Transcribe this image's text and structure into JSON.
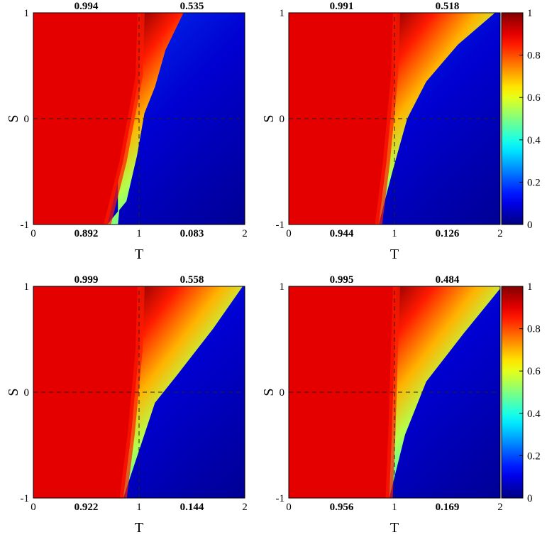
{
  "chart_data": [
    {
      "type": "heatmap",
      "title": "",
      "xlabel": "T",
      "ylabel": "S",
      "xlim": [
        0,
        2
      ],
      "ylim": [
        -1,
        1
      ],
      "x_ticks": [
        "0",
        "1",
        "2"
      ],
      "y_ticks": [
        "-1",
        "0",
        "1"
      ],
      "quadrant_values": {
        "top_left": "0.994",
        "top_right": "0.535",
        "bottom_left": "0.892",
        "bottom_right": "0.083"
      },
      "boundary": [
        [
          1.42,
          1.0
        ],
        [
          1.25,
          0.65
        ],
        [
          1.15,
          0.3
        ],
        [
          1.05,
          0.05
        ],
        [
          0.98,
          -0.35
        ],
        [
          0.88,
          -0.78
        ],
        [
          0.7,
          -1.0
        ]
      ],
      "top_edge_values": [
        [
          1.0,
          0.8
        ],
        [
          1.3,
          0.62
        ],
        [
          1.6,
          0.5
        ],
        [
          2.0,
          0.42
        ]
      ],
      "colorbar": false
    },
    {
      "type": "heatmap",
      "title": "",
      "xlabel": "T",
      "ylabel": "S",
      "xlim": [
        0,
        2
      ],
      "ylim": [
        -1,
        1
      ],
      "x_ticks": [
        "0",
        "1",
        "2"
      ],
      "y_ticks": [
        "-1",
        "0",
        "1"
      ],
      "quadrant_values": {
        "top_left": "0.991",
        "top_right": "0.518",
        "bottom_left": "0.944",
        "bottom_right": "0.126"
      },
      "boundary": [
        [
          1.95,
          1.0
        ],
        [
          1.6,
          0.7
        ],
        [
          1.3,
          0.35
        ],
        [
          1.12,
          0.0
        ],
        [
          0.98,
          -0.5
        ],
        [
          0.85,
          -1.0
        ]
      ],
      "top_edge_values": [
        [
          1.0,
          0.82
        ],
        [
          1.3,
          0.72
        ],
        [
          1.7,
          0.62
        ],
        [
          2.0,
          0.55
        ]
      ],
      "colorbar": true
    },
    {
      "type": "heatmap",
      "title": "",
      "xlabel": "T",
      "ylabel": "S",
      "xlim": [
        0,
        2
      ],
      "ylim": [
        -1,
        1
      ],
      "x_ticks": [
        "0",
        "1",
        "2"
      ],
      "y_ticks": [
        "-1",
        "0",
        "1"
      ],
      "quadrant_values": {
        "top_left": "0.999",
        "top_right": "0.558",
        "bottom_left": "0.922",
        "bottom_right": "0.144"
      },
      "boundary": [
        [
          1.98,
          1.0
        ],
        [
          1.7,
          0.6
        ],
        [
          1.35,
          0.15
        ],
        [
          1.15,
          -0.1
        ],
        [
          1.0,
          -0.55
        ],
        [
          0.85,
          -1.0
        ]
      ],
      "top_edge_values": [
        [
          1.0,
          0.85
        ],
        [
          1.25,
          0.62
        ],
        [
          1.6,
          0.45
        ],
        [
          2.0,
          0.35
        ]
      ],
      "colorbar": false
    },
    {
      "type": "heatmap",
      "title": "",
      "xlabel": "T",
      "ylabel": "S",
      "xlim": [
        0,
        2
      ],
      "ylim": [
        -1,
        1
      ],
      "x_ticks": [
        "0",
        "1",
        "2"
      ],
      "y_ticks": [
        "-1",
        "0",
        "1"
      ],
      "quadrant_values": {
        "top_left": "0.995",
        "top_right": "0.484",
        "bottom_left": "0.956",
        "bottom_right": "0.169"
      },
      "boundary": [
        [
          2.0,
          0.98
        ],
        [
          1.65,
          0.55
        ],
        [
          1.3,
          0.1
        ],
        [
          1.1,
          -0.4
        ],
        [
          0.95,
          -1.0
        ]
      ],
      "top_edge_values": [
        [
          1.0,
          0.82
        ],
        [
          1.3,
          0.6
        ],
        [
          1.6,
          0.45
        ],
        [
          2.0,
          0.32
        ]
      ],
      "colorbar": true
    }
  ],
  "colorbar": {
    "colormap": "jet",
    "range": [
      0,
      1
    ],
    "tick_labels": [
      "0",
      "0.2",
      "0.4",
      "0.6",
      "0.8",
      "1"
    ]
  }
}
